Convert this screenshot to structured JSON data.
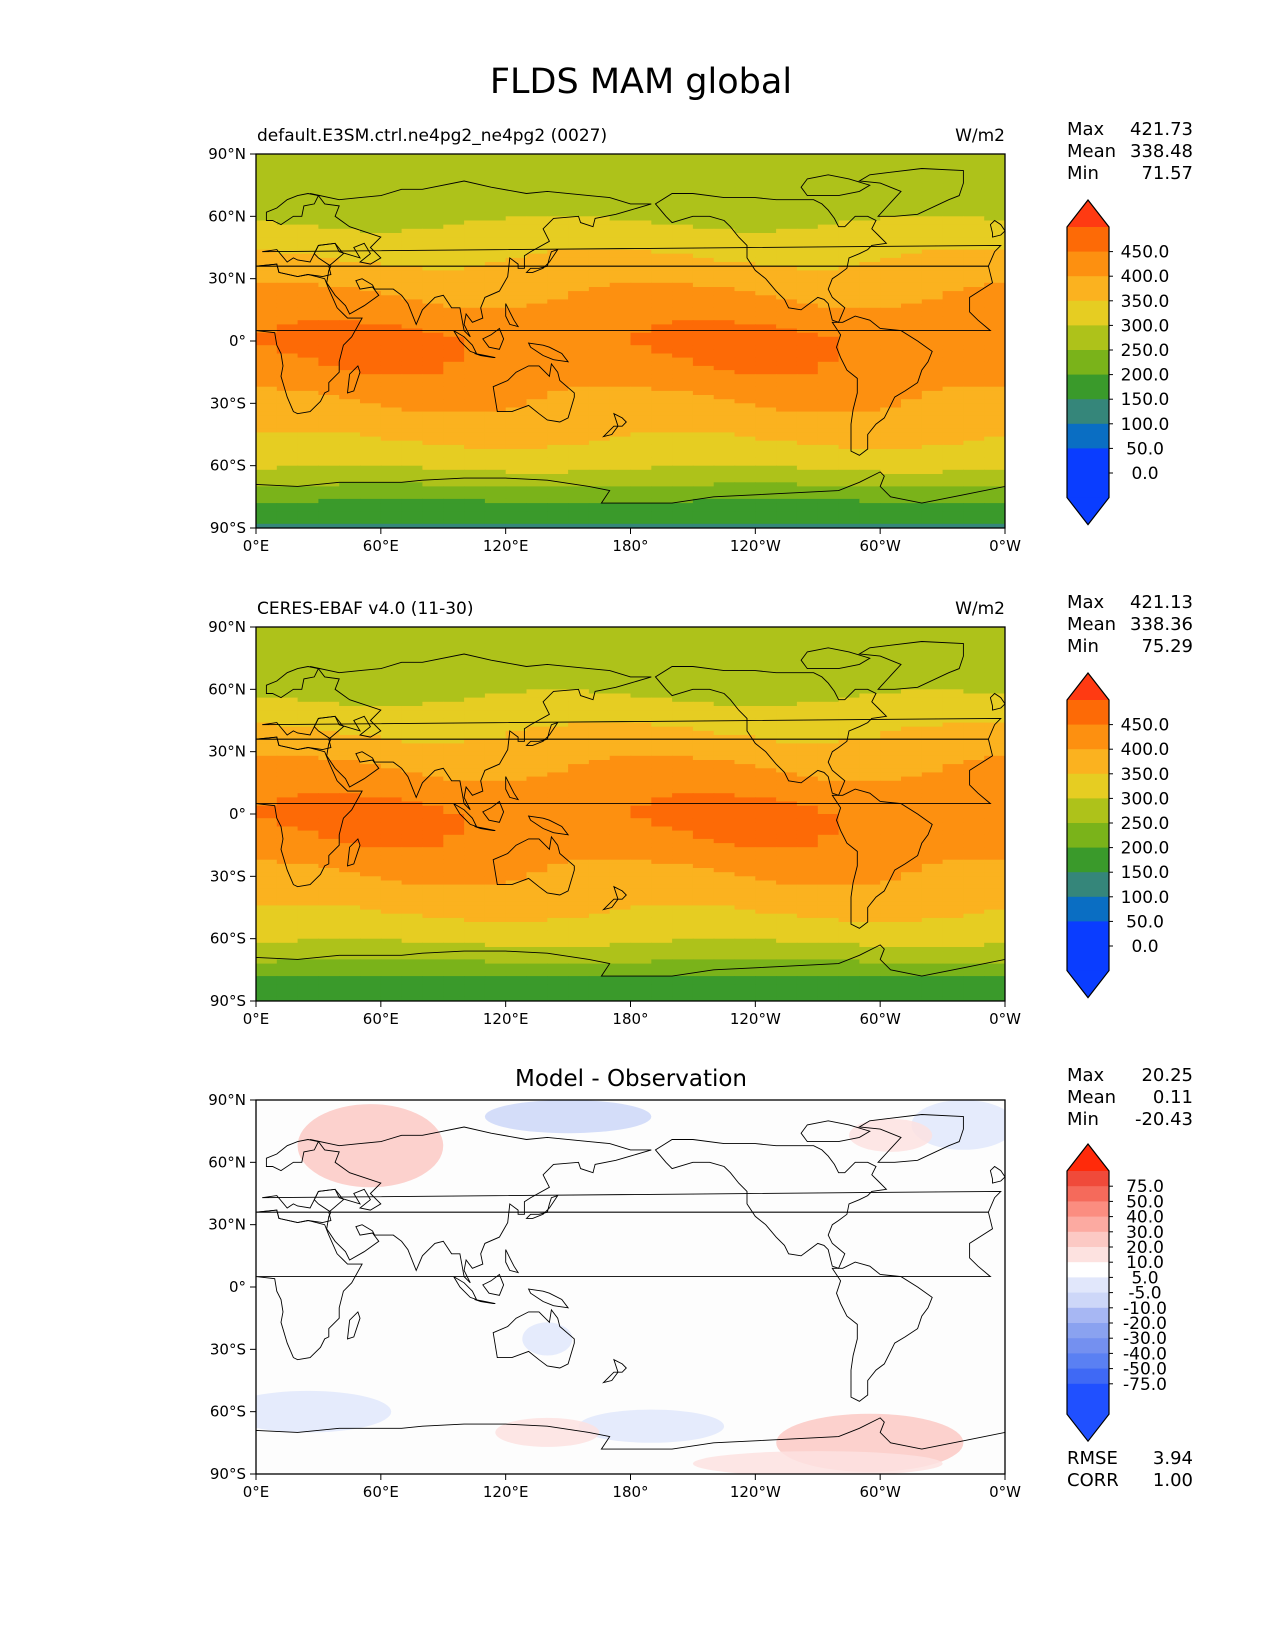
{
  "figure": {
    "title": "FLDS MAM global"
  },
  "colors": {
    "abs_fills": [
      "#0a3dff",
      "#0a6ec3",
      "#35867a",
      "#3a9a2b",
      "#7ab31a",
      "#aec21a",
      "#e6cd22",
      "#fbb21f",
      "#fd9010",
      "#fd6a06",
      "#ff3a12"
    ],
    "diff_fills": [
      "#2050ff",
      "#3f69f5",
      "#5a80f3",
      "#7490f0",
      "#8aa2f0",
      "#a7b7f3",
      "#cdd7f8",
      "#e1e7fb",
      "#ffffff",
      "#fde2e0",
      "#fcc9c4",
      "#fcaaa1",
      "#fb8d80",
      "#f56a5b",
      "#f04a3a",
      "#ff2a0a"
    ],
    "coast": "#000000"
  },
  "chart_data": [
    {
      "type": "heatmap",
      "title": "default.E3SM.ctrl.ne4pg2_ne4pg2 (0027)",
      "units": "W/m2",
      "stats": [
        {
          "label": "Max",
          "value": "421.73"
        },
        {
          "label": "Mean",
          "value": "338.48"
        },
        {
          "label": "Min",
          "value": "71.57"
        }
      ],
      "colorbar_ticks": [
        "450.0",
        "400.0",
        "350.0",
        "300.0",
        "250.0",
        "200.0",
        "150.0",
        "100.0",
        "50.0",
        "0.0"
      ],
      "xticks": [
        "0°E",
        "60°E",
        "120°E",
        "180°",
        "120°W",
        "60°W",
        "0°W"
      ],
      "yticks": [
        "90°N",
        "60°N",
        "30°N",
        "0°",
        "30°S",
        "60°S",
        "90°S"
      ],
      "xlim": [
        0,
        360
      ],
      "ylim": [
        -90,
        90
      ],
      "field_profile": [
        {
          "lat": 90,
          "value": 200
        },
        {
          "lat": 75,
          "value": 215
        },
        {
          "lat": 60,
          "value": 240
        },
        {
          "lat": 45,
          "value": 285
        },
        {
          "lat": 30,
          "value": 330
        },
        {
          "lat": 15,
          "value": 370
        },
        {
          "lat": 0,
          "value": 405
        },
        {
          "lat": -15,
          "value": 385
        },
        {
          "lat": -30,
          "value": 345
        },
        {
          "lat": -45,
          "value": 310
        },
        {
          "lat": -60,
          "value": 260
        },
        {
          "lat": -70,
          "value": 200
        },
        {
          "lat": -80,
          "value": 130
        },
        {
          "lat": -90,
          "value": 95
        }
      ]
    },
    {
      "type": "heatmap",
      "title": "CERES-EBAF v4.0 (11-30)",
      "units": "W/m2",
      "stats": [
        {
          "label": "Max",
          "value": "421.13"
        },
        {
          "label": "Mean",
          "value": "338.36"
        },
        {
          "label": "Min",
          "value": "75.29"
        }
      ],
      "colorbar_ticks": [
        "450.0",
        "400.0",
        "350.0",
        "300.0",
        "250.0",
        "200.0",
        "150.0",
        "100.0",
        "50.0",
        "0.0"
      ],
      "xticks": [
        "0°E",
        "60°E",
        "120°E",
        "180°",
        "120°W",
        "60°W",
        "0°W"
      ],
      "yticks": [
        "90°N",
        "60°N",
        "30°N",
        "0°",
        "30°S",
        "60°S",
        "90°S"
      ],
      "xlim": [
        0,
        360
      ],
      "ylim": [
        -90,
        90
      ],
      "field_profile": [
        {
          "lat": 90,
          "value": 200
        },
        {
          "lat": 75,
          "value": 212
        },
        {
          "lat": 60,
          "value": 238
        },
        {
          "lat": 45,
          "value": 283
        },
        {
          "lat": 30,
          "value": 330
        },
        {
          "lat": 15,
          "value": 370
        },
        {
          "lat": 0,
          "value": 404
        },
        {
          "lat": -15,
          "value": 385
        },
        {
          "lat": -30,
          "value": 345
        },
        {
          "lat": -45,
          "value": 310
        },
        {
          "lat": -60,
          "value": 262
        },
        {
          "lat": -70,
          "value": 205
        },
        {
          "lat": -80,
          "value": 135
        },
        {
          "lat": -90,
          "value": 100
        }
      ]
    },
    {
      "type": "heatmap",
      "title": "Model - Observation",
      "units": "",
      "stats": [
        {
          "label": "Max",
          "value": "20.25"
        },
        {
          "label": "Mean",
          "value": "0.11"
        },
        {
          "label": "Min",
          "value": "-20.43"
        }
      ],
      "colorbar_ticks": [
        "75.0",
        "50.0",
        "40.0",
        "30.0",
        "20.0",
        "10.0",
        "5.0",
        "-5.0",
        "-10.0",
        "-20.0",
        "-30.0",
        "-40.0",
        "-50.0",
        "-75.0"
      ],
      "xticks": [
        "0°E",
        "60°E",
        "120°E",
        "180°",
        "120°W",
        "60°W",
        "0°W"
      ],
      "yticks": [
        "90°N",
        "60°N",
        "30°N",
        "0°",
        "30°S",
        "60°S",
        "90°S"
      ],
      "xlim": [
        0,
        360
      ],
      "ylim": [
        -90,
        90
      ],
      "metrics": [
        {
          "label": "RMSE",
          "value": "3.94"
        },
        {
          "label": "CORR",
          "value": "1.00"
        }
      ],
      "anomalies": [
        {
          "lon": 55,
          "lat": 68,
          "rlon": 35,
          "rlat": 20,
          "value": 12
        },
        {
          "lon": 150,
          "lat": 82,
          "rlon": 40,
          "rlat": 8,
          "value": -12
        },
        {
          "lon": 340,
          "lat": 78,
          "rlon": 25,
          "rlat": 12,
          "value": -8
        },
        {
          "lon": 305,
          "lat": 73,
          "rlon": 20,
          "rlat": 8,
          "value": 7
        },
        {
          "lon": 140,
          "lat": -25,
          "rlon": 12,
          "rlat": 8,
          "value": -8
        },
        {
          "lon": 25,
          "lat": -60,
          "rlon": 40,
          "rlat": 10,
          "value": -8
        },
        {
          "lon": 190,
          "lat": -67,
          "rlon": 35,
          "rlat": 8,
          "value": -10
        },
        {
          "lon": 295,
          "lat": -75,
          "rlon": 45,
          "rlat": 14,
          "value": 12
        },
        {
          "lon": 140,
          "lat": -70,
          "rlon": 25,
          "rlat": 7,
          "value": 7
        },
        {
          "lon": 270,
          "lat": -85,
          "rlon": 60,
          "rlat": 6,
          "value": 6
        }
      ]
    }
  ]
}
